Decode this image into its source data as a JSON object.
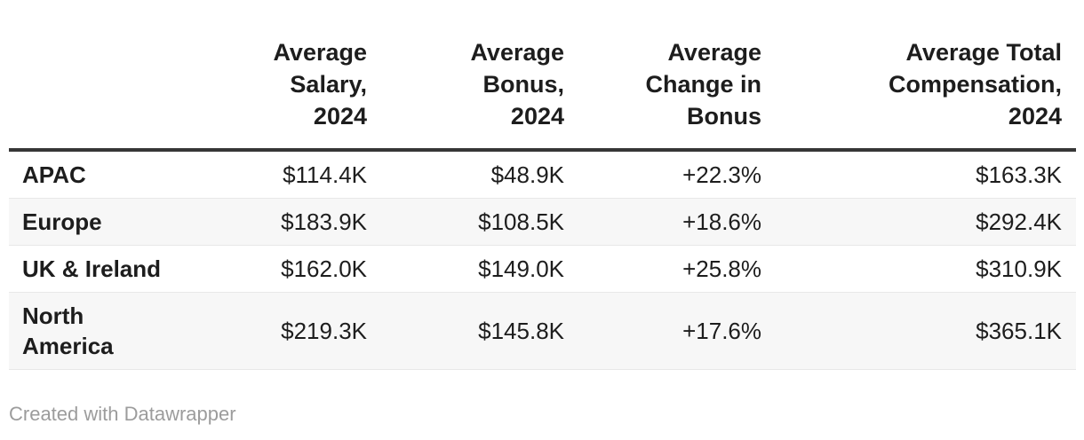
{
  "table": {
    "header": {
      "row_label_column": "",
      "columns": [
        "Average\nSalary,\n2024",
        "Average\nBonus,\n2024",
        "Average\nChange in\nBonus",
        "Average Total\nCompensation,\n2024"
      ]
    },
    "rows": [
      {
        "label": "APAC",
        "values": [
          "$114.4K",
          "$48.9K",
          "+22.3%",
          "$163.3K"
        ]
      },
      {
        "label": "Europe",
        "values": [
          "$183.9K",
          "$108.5K",
          "+18.6%",
          "$292.4K"
        ]
      },
      {
        "label": "UK & Ireland",
        "values": [
          "$162.0K",
          "$149.0K",
          "+25.8%",
          "$310.9K"
        ]
      },
      {
        "label": "North\nAmerica",
        "values": [
          "$219.3K",
          "$145.8K",
          "+17.6%",
          "$365.1K"
        ]
      }
    ]
  },
  "footer": {
    "credit": "Created with Datawrapper"
  },
  "colors": {
    "text": "#1d1d1d",
    "header_rule": "#363636",
    "row_divider": "#e8e8e8",
    "stripe": "#f7f7f7",
    "footer_text": "#9c9c9c"
  },
  "chart_data": {
    "type": "table",
    "title": "",
    "categories": [
      "APAC",
      "Europe",
      "UK & Ireland",
      "North America"
    ],
    "columns": [
      "Average Salary, 2024",
      "Average Bonus, 2024",
      "Average Change in Bonus",
      "Average Total Compensation, 2024"
    ],
    "series": [
      {
        "name": "Average Salary, 2024",
        "values": [
          "$114.4K",
          "$183.9K",
          "$162.0K",
          "$219.3K"
        ]
      },
      {
        "name": "Average Bonus, 2024",
        "values": [
          "$48.9K",
          "$108.5K",
          "$149.0K",
          "$145.8K"
        ]
      },
      {
        "name": "Average Change in Bonus",
        "values": [
          "+22.3%",
          "+18.6%",
          "+25.8%",
          "+17.6%"
        ]
      },
      {
        "name": "Average Total Compensation, 2024",
        "values": [
          "$163.3K",
          "$292.4K",
          "$310.9K",
          "$365.1K"
        ]
      }
    ],
    "layout_hints": {
      "striped_rows": true,
      "value_alignment": "right",
      "header_alignment": "right"
    }
  }
}
